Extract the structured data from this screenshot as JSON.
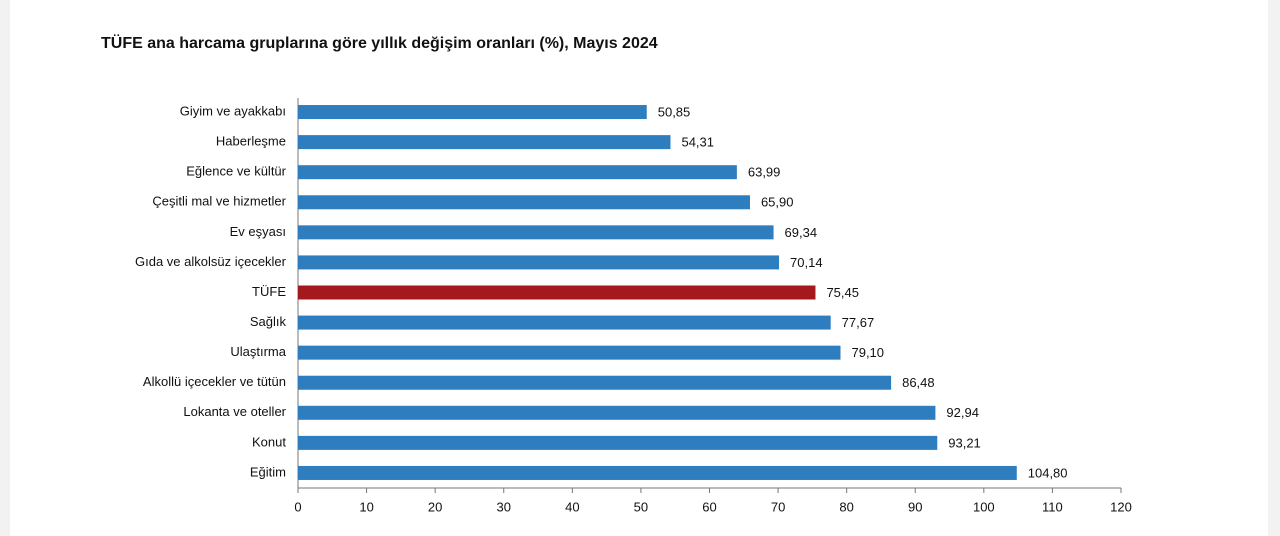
{
  "chart_data": {
    "type": "bar",
    "orientation": "horizontal",
    "title": "TÜFE ana harcama gruplarına göre yıllık değişim oranları (%), Mayıs 2024",
    "categories": [
      "Giyim ve ayakkabı",
      "Haberleşme",
      "Eğlence ve kültür",
      "Çeşitli mal ve hizmetler",
      "Ev eşyası",
      "Gıda ve alkolsüz içecekler",
      "TÜFE",
      "Sağlık",
      "Ulaştırma",
      "Alkollü içecekler ve tütün",
      "Lokanta ve oteller",
      "Konut",
      "Eğitim"
    ],
    "values": [
      50.85,
      54.31,
      63.99,
      65.9,
      69.34,
      70.14,
      75.45,
      77.67,
      79.1,
      86.48,
      92.94,
      93.21,
      104.8
    ],
    "value_labels": [
      "50,85",
      "54,31",
      "63,99",
      "65,90",
      "69,34",
      "70,14",
      "75,45",
      "77,67",
      "79,10",
      "86,48",
      "92,94",
      "93,21",
      "104,80"
    ],
    "colors": [
      "#2e7dbf",
      "#2e7dbf",
      "#2e7dbf",
      "#2e7dbf",
      "#2e7dbf",
      "#2e7dbf",
      "#a3191d",
      "#2e7dbf",
      "#2e7dbf",
      "#2e7dbf",
      "#2e7dbf",
      "#2e7dbf",
      "#2e7dbf"
    ],
    "xlim": [
      0,
      120
    ],
    "xticks": [
      0,
      10,
      20,
      30,
      40,
      50,
      60,
      70,
      80,
      90,
      100,
      110,
      120
    ]
  }
}
